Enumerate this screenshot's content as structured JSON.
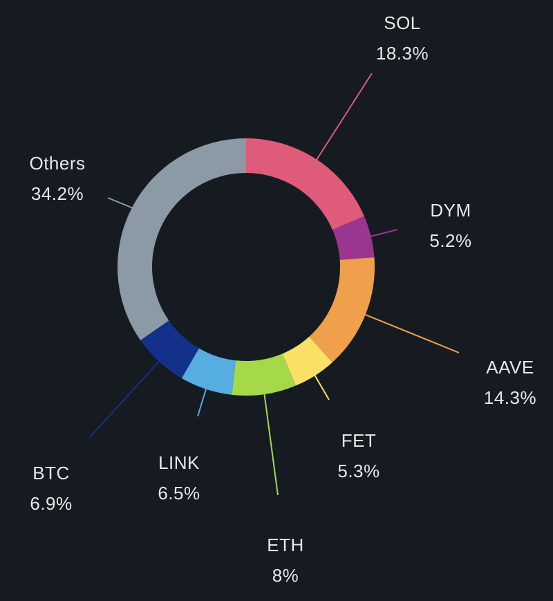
{
  "chart_data": {
    "type": "pie",
    "variant": "donut",
    "direction": "clockwise-from-top",
    "background": "#161b21",
    "slices": [
      {
        "label": "SOL",
        "value": 18.3,
        "display": "18.3%",
        "color": "#de5b79"
      },
      {
        "label": "DYM",
        "value": 5.2,
        "display": "5.2%",
        "color": "#9b3690"
      },
      {
        "label": "AAVE",
        "value": 14.3,
        "display": "14.3%",
        "color": "#f0a04b"
      },
      {
        "label": "FET",
        "value": 5.3,
        "display": "5.3%",
        "color": "#fae166"
      },
      {
        "label": "ETH",
        "value": 8,
        "display": "8%",
        "color": "#a5d94a"
      },
      {
        "label": "LINK",
        "value": 6.5,
        "display": "6.5%",
        "color": "#56ade0"
      },
      {
        "label": "BTC",
        "value": 6.9,
        "display": "6.9%",
        "color": "#13308a"
      },
      {
        "label": "Others",
        "value": 34.2,
        "display": "34.2%",
        "color": "#8c9aa5"
      }
    ]
  }
}
